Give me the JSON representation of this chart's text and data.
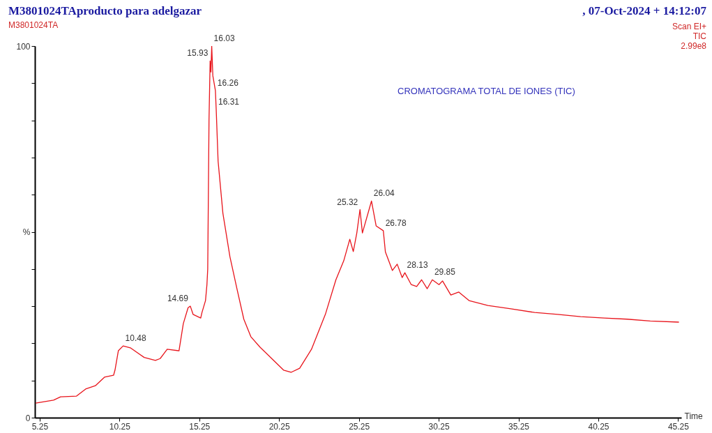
{
  "chart_data": {
    "type": "line",
    "title": "M3801024TAproducto para adelgazar",
    "subtitle": "M3801024TA",
    "xlabel": "Time",
    "x": [
      5.0,
      6.12,
      6.56,
      7.56,
      8.13,
      8.74,
      9.31,
      9.88,
      9.97,
      10.18,
      10.48,
      10.93,
      11.8,
      12.5,
      12.8,
      13.24,
      13.98,
      14.25,
      14.55,
      14.69,
      14.86,
      15.34,
      15.42,
      15.64,
      15.73,
      15.78,
      15.82,
      15.86,
      15.93,
      15.98,
      16.03,
      16.1,
      16.26,
      16.31,
      16.43,
      16.73,
      17.17,
      17.61,
      18.04,
      18.48,
      19.05,
      19.79,
      20.53,
      21.0,
      21.54,
      22.28,
      23.15,
      23.81,
      24.3,
      24.68,
      24.9,
      25.12,
      25.32,
      25.47,
      26.04,
      26.33,
      26.78,
      26.91,
      27.35,
      27.65,
      27.96,
      28.13,
      28.53,
      28.87,
      29.18,
      29.53,
      29.85,
      30.27,
      30.49,
      31.01,
      31.5,
      32.15,
      33.33,
      34.77,
      36.26,
      37.7,
      39.14,
      40.62,
      42.06,
      43.5,
      45.3
    ],
    "values": [
      3.9,
      4.7,
      5.6,
      5.8,
      7.7,
      8.6,
      10.9,
      11.4,
      12.8,
      18.0,
      19.3,
      18.8,
      16.2,
      15.4,
      15.9,
      18.4,
      18.0,
      25.3,
      29.6,
      30,
      27.8,
      26.8,
      28.3,
      31.5,
      35.8,
      40,
      60,
      80,
      96,
      93,
      100,
      92,
      88,
      83,
      69,
      55,
      43.3,
      34.7,
      26.5,
      21.8,
      19,
      15.9,
      12.8,
      12.2,
      13.3,
      18.4,
      27.8,
      37.1,
      42.2,
      48,
      44.7,
      49.7,
      56,
      49.7,
      58.3,
      51.6,
      50.3,
      44.6,
      39.6,
      41.3,
      37.7,
      39,
      35.8,
      35.3,
      37.1,
      34.7,
      37.1,
      35.8,
      36.8,
      33,
      33.8,
      31.5,
      30.2,
      29.3,
      28.3,
      27.8,
      27.2,
      26.8,
      26.5,
      26,
      25.7
    ],
    "color": "#e8141b",
    "xlim": [
      4.95,
      45.45
    ],
    "ylim": [
      0,
      100
    ],
    "xticks": [
      5.25,
      10.25,
      15.25,
      20.25,
      25.25,
      30.25,
      35.25,
      40.25,
      45.25
    ],
    "yticks": [
      0,
      {
        "value": 10,
        "label": null
      },
      {
        "value": 20,
        "label": null
      },
      {
        "value": 30,
        "label": null
      },
      {
        "value": 40,
        "label": null
      },
      {
        "value": 50,
        "label": "%"
      },
      {
        "value": 60,
        "label": null
      },
      {
        "value": 70,
        "label": null
      },
      {
        "value": 80,
        "label": null
      },
      {
        "value": 90,
        "label": null
      },
      100
    ],
    "grid": false,
    "annotations": [
      ", 07-Oct-2024 + 14:12:07",
      "Scan EI+",
      "TIC",
      "2.99e8",
      "CROMATOGRAMA TOTAL DE IONES (TIC)",
      {
        "text": "10.48",
        "x": 10.48,
        "y": 19.3
      },
      {
        "text": "14.69",
        "x": 14.69,
        "y": 30
      },
      {
        "text": "15.93",
        "x": 15.93,
        "y": 96
      },
      {
        "text": "16.03",
        "x": 16.03,
        "y": 100
      },
      {
        "text": "16.26",
        "x": 16.26,
        "y": 88
      },
      {
        "text": "16.31",
        "x": 16.31,
        "y": 83
      },
      {
        "text": "25.32",
        "x": 25.32,
        "y": 56
      },
      {
        "text": "26.04",
        "x": 26.04,
        "y": 58.3
      },
      {
        "text": "26.78",
        "x": 26.78,
        "y": 50.3
      },
      {
        "text": "28.13",
        "x": 28.13,
        "y": 39
      },
      {
        "text": "29.85",
        "x": 29.85,
        "y": 37.1
      }
    ]
  }
}
